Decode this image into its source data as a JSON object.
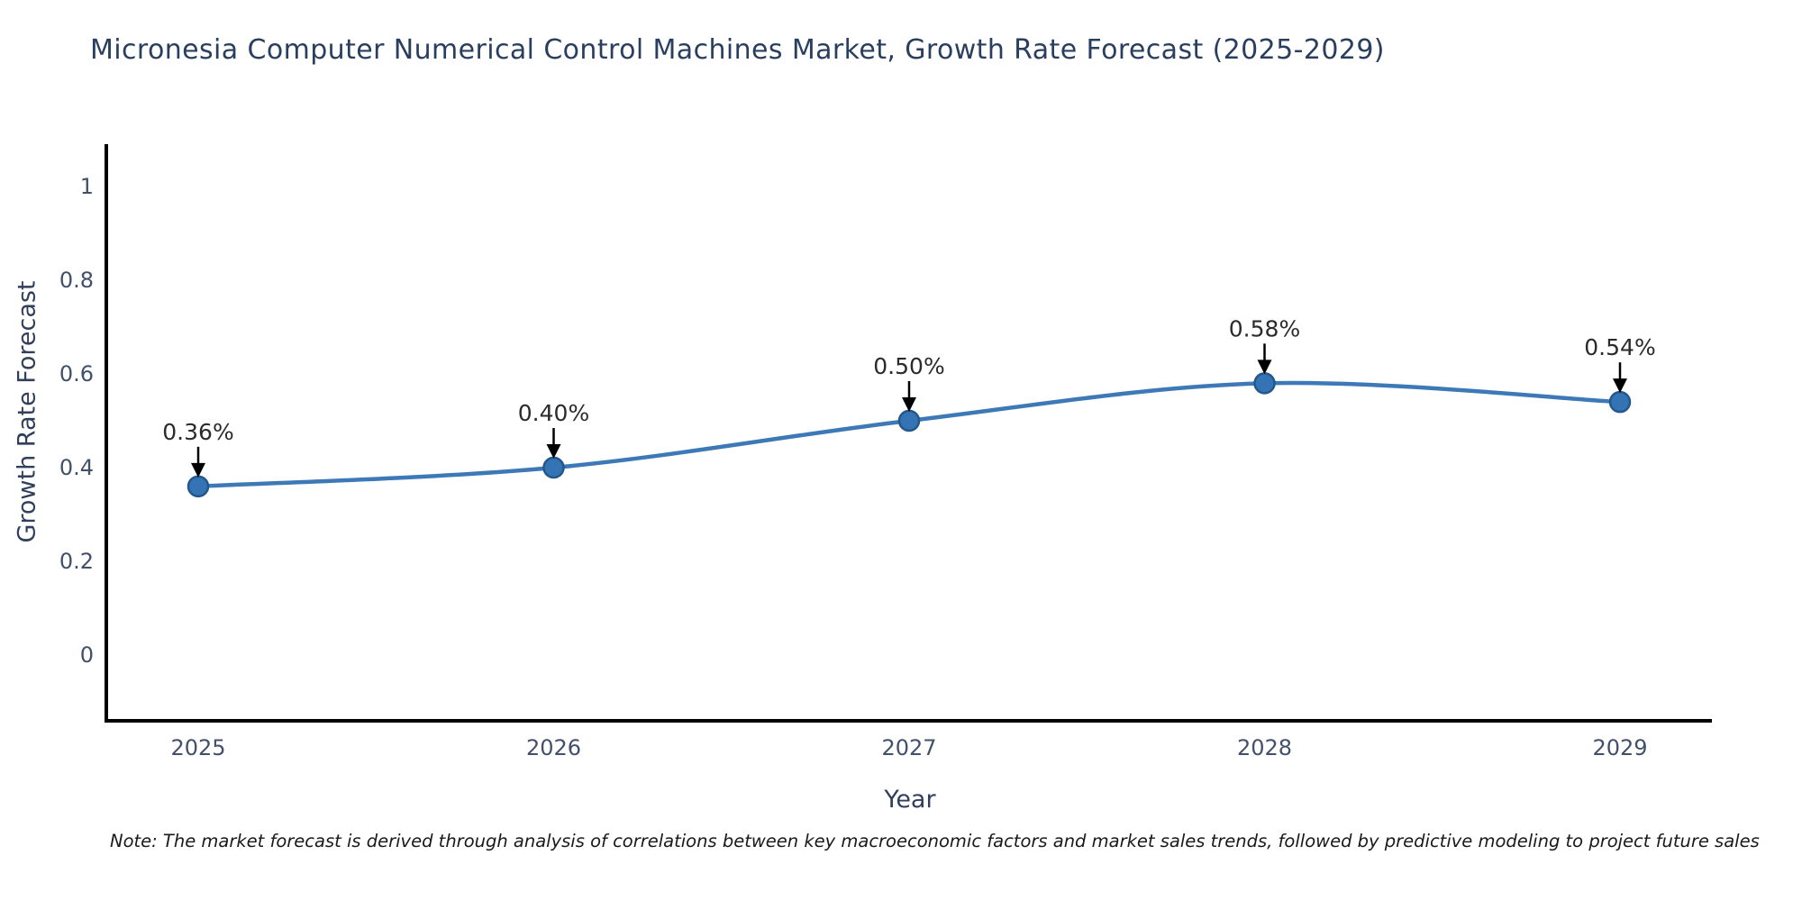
{
  "note": "Note: The market forecast is derived through analysis of correlations between key macroeconomic factors and market sales trends, followed by predictive modeling to project future sales",
  "colors": {
    "line": "#3d79b6",
    "marker_fill": "#3474b4",
    "marker_edge": "#24578c",
    "axis": "#000000",
    "tick_text": "#42506b",
    "title_text": "#2a3f5f",
    "annotation_text": "#2b2b2b"
  },
  "chart_data": {
    "type": "line",
    "title": "Micronesia Computer Numerical Control Machines Market, Growth Rate Forecast (2025-2029)",
    "xlabel": "Year",
    "ylabel": "Growth Rate Forecast",
    "categories": [
      "2025",
      "2026",
      "2027",
      "2028",
      "2029"
    ],
    "values": [
      0.36,
      0.4,
      0.5,
      0.58,
      0.54
    ],
    "point_labels": [
      "0.36%",
      "0.40%",
      "0.50%",
      "0.58%",
      "0.54%"
    ],
    "y_ticks": [
      "0",
      "0.2",
      "0.4",
      "0.6",
      "0.8",
      "1"
    ],
    "y_tick_values": [
      0,
      0.2,
      0.4,
      0.6,
      0.8,
      1
    ],
    "ylim": [
      -0.14,
      1.09
    ],
    "grid": false,
    "legend_position": "none",
    "annotation_style": "value label with downward arrow above each point"
  }
}
